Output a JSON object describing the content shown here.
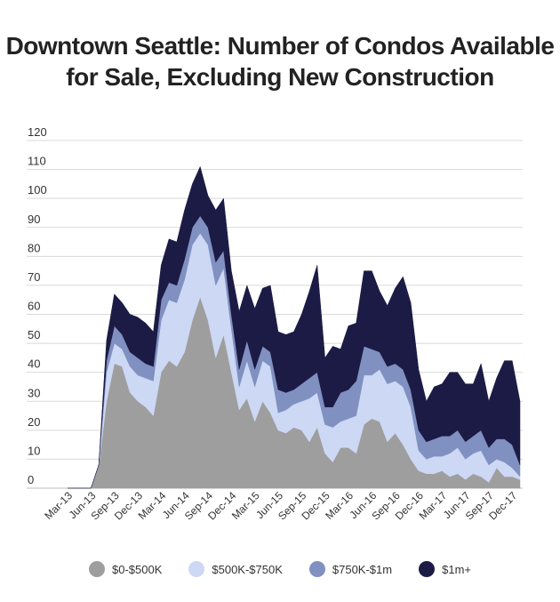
{
  "chart_data": {
    "type": "area",
    "stacked": true,
    "title": [
      "Downtown Seattle: Number of Condos Available",
      "for Sale, Excluding New Construction"
    ],
    "xlabel": "",
    "ylabel": "",
    "ylim": [
      0,
      120
    ],
    "yticks": [
      0,
      10,
      20,
      30,
      40,
      50,
      60,
      70,
      80,
      90,
      100,
      110,
      120
    ],
    "grid": true,
    "legend_position": "bottom",
    "x_tick_labels": [
      "Mar-13",
      "Jun-13",
      "Sep-13",
      "Dec-13",
      "Mar-14",
      "Jun-14",
      "Sep-14",
      "Dec-14",
      "Mar-15",
      "Jun-15",
      "Sep-15",
      "Dec-15",
      "Mar-16",
      "Jun-16",
      "Sep-16",
      "Dec-16",
      "Mar-17",
      "Jun-17",
      "Sep-17",
      "Dec-17"
    ],
    "x_tick_index": [
      0,
      3,
      6,
      9,
      12,
      15,
      18,
      21,
      24,
      27,
      30,
      33,
      36,
      39,
      42,
      45,
      48,
      51,
      54,
      57
    ],
    "series": [
      {
        "name": "$0-$500K",
        "color": "#9e9e9e",
        "values": [
          0,
          0,
          0,
          0,
          8,
          30,
          43,
          42,
          33,
          30,
          28,
          25,
          40,
          44,
          42,
          47,
          58,
          66,
          58,
          45,
          53,
          40,
          27,
          31,
          23,
          30,
          26,
          20,
          19,
          21,
          20,
          16,
          21,
          12,
          9,
          14,
          14,
          12,
          22,
          24,
          23,
          16,
          19,
          15,
          10,
          6,
          5,
          5,
          6,
          4,
          5,
          3,
          5,
          4,
          2,
          7,
          4,
          4,
          3
        ]
      },
      {
        "name": "$500K-$750K",
        "color": "#ccd8f4",
        "values": [
          0,
          0,
          0,
          0,
          0,
          10,
          7,
          6,
          9,
          9,
          10,
          12,
          18,
          21,
          22,
          25,
          26,
          22,
          26,
          25,
          23,
          15,
          8,
          13,
          12,
          14,
          16,
          6,
          8,
          8,
          10,
          15,
          12,
          10,
          12,
          9,
          10,
          13,
          17,
          15,
          18,
          20,
          18,
          20,
          18,
          7,
          5,
          6,
          5,
          8,
          9,
          7,
          7,
          9,
          6,
          3,
          5,
          3,
          1
        ]
      },
      {
        "name": "$750K-$1m",
        "color": "#8090c0",
        "values": [
          0,
          0,
          0,
          0,
          0,
          4,
          6,
          5,
          5,
          6,
          5,
          5,
          7,
          6,
          6,
          7,
          6,
          6,
          6,
          8,
          6,
          5,
          6,
          7,
          6,
          5,
          5,
          8,
          6,
          5,
          6,
          7,
          7,
          6,
          7,
          10,
          10,
          12,
          10,
          9,
          6,
          6,
          6,
          6,
          6,
          7,
          6,
          6,
          7,
          6,
          6,
          6,
          6,
          7,
          6,
          7,
          8,
          8,
          4
        ]
      },
      {
        "name": "$1m+",
        "color": "#1b1b45",
        "values": [
          0,
          0,
          0,
          0,
          0,
          7,
          11,
          11,
          13,
          14,
          14,
          12,
          12,
          15,
          15,
          17,
          15,
          17,
          11,
          18,
          18,
          15,
          20,
          19,
          21,
          20,
          23,
          20,
          20,
          20,
          24,
          30,
          37,
          17,
          21,
          15,
          22,
          20,
          26,
          27,
          21,
          21,
          26,
          32,
          30,
          21,
          14,
          18,
          18,
          22,
          20,
          20,
          18,
          23,
          16,
          21,
          27,
          29,
          22
        ]
      }
    ]
  }
}
